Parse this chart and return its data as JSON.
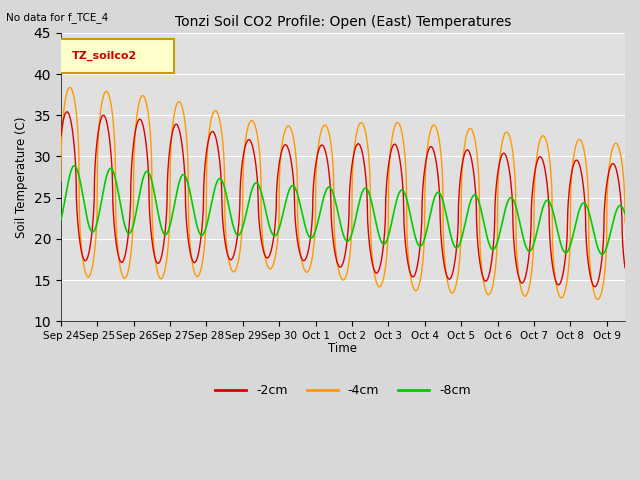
{
  "title": "Tonzi Soil CO2 Profile: Open (East) Temperatures",
  "subtitle": "No data for f_TCE_4",
  "ylabel": "Soil Temperature (C)",
  "xlabel": "Time",
  "legend_label": "TZ_soilco2",
  "ylim": [
    10,
    45
  ],
  "series_labels": [
    "-2cm",
    "-4cm",
    "-8cm"
  ],
  "series_colors": [
    "#dd0000",
    "#ff9900",
    "#00cc00"
  ],
  "background_color": "#e0e0e0",
  "x_tick_labels": [
    "Sep 24",
    "Sep 25",
    "Sep 26",
    "Sep 27",
    "Sep 28",
    "Sep 29",
    "Sep 30",
    "Oct 1",
    "Oct 2",
    "Oct 3",
    "Oct 4",
    "Oct 5",
    "Oct 6",
    "Oct 7",
    "Oct 8",
    "Oct 9"
  ],
  "fig_width": 6.4,
  "fig_height": 4.8,
  "dpi": 100
}
